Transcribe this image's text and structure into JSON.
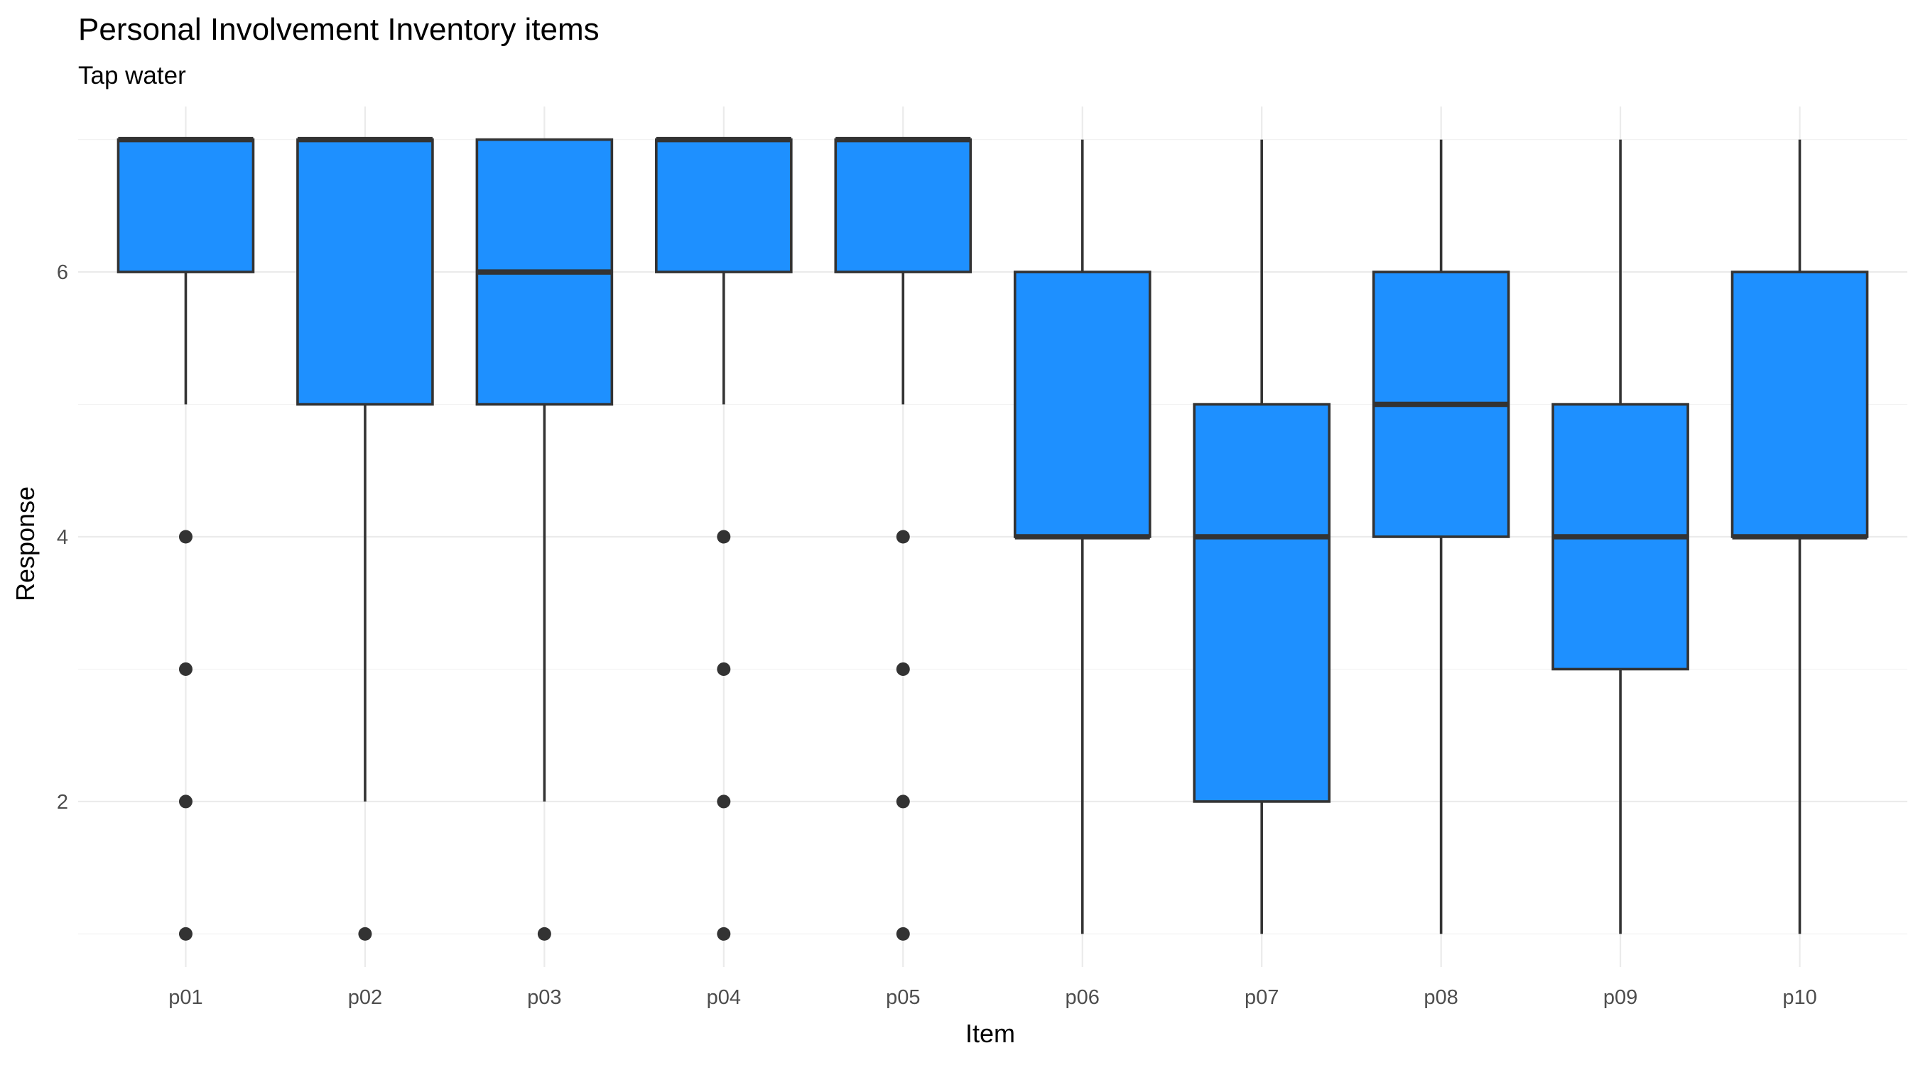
{
  "chart_data": {
    "type": "boxplot",
    "title": "Personal Involvement Inventory items",
    "subtitle": "Tap water",
    "xlabel": "Item",
    "ylabel": "Response",
    "categories": [
      "p01",
      "p02",
      "p03",
      "p04",
      "p05",
      "p06",
      "p07",
      "p08",
      "p09",
      "p10"
    ],
    "ylim": [
      0.75,
      7.25
    ],
    "yticks": [
      2,
      4,
      6
    ],
    "ytick_labels": [
      "2",
      "4",
      "6"
    ],
    "grid": true,
    "box_fill": "#1E90FF",
    "line_color": "#333333",
    "boxes": [
      {
        "item": "p01",
        "lower": 5,
        "q1": 6,
        "median": 7,
        "q3": 7,
        "upper": 7,
        "outliers": [
          4,
          3,
          2,
          1
        ]
      },
      {
        "item": "p02",
        "lower": 2,
        "q1": 5,
        "median": 7,
        "q3": 7,
        "upper": 7,
        "outliers": [
          1
        ]
      },
      {
        "item": "p03",
        "lower": 2,
        "q1": 5,
        "median": 6,
        "q3": 7,
        "upper": 7,
        "outliers": [
          1
        ]
      },
      {
        "item": "p04",
        "lower": 5,
        "q1": 6,
        "median": 7,
        "q3": 7,
        "upper": 7,
        "outliers": [
          4,
          3,
          2,
          1
        ]
      },
      {
        "item": "p05",
        "lower": 5,
        "q1": 6,
        "median": 7,
        "q3": 7,
        "upper": 7,
        "outliers": [
          4,
          3,
          2,
          1
        ]
      },
      {
        "item": "p06",
        "lower": 1,
        "q1": 4,
        "median": 4,
        "q3": 6,
        "upper": 7,
        "outliers": []
      },
      {
        "item": "p07",
        "lower": 1,
        "q1": 2,
        "median": 4,
        "q3": 5,
        "upper": 7,
        "outliers": []
      },
      {
        "item": "p08",
        "lower": 1,
        "q1": 4,
        "median": 5,
        "q3": 6,
        "upper": 7,
        "outliers": []
      },
      {
        "item": "p09",
        "lower": 1,
        "q1": 3,
        "median": 4,
        "q3": 5,
        "upper": 7,
        "outliers": []
      },
      {
        "item": "p10",
        "lower": 1,
        "q1": 4,
        "median": 4,
        "q3": 6,
        "upper": 7,
        "outliers": []
      }
    ]
  }
}
